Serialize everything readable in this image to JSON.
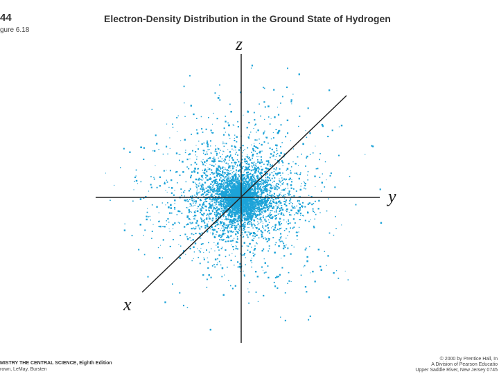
{
  "header": {
    "page": "44",
    "figure": "gure 6.18",
    "title": "Electron-Density Distribution in the Ground State of Hydrogen"
  },
  "axes": {
    "z": "z",
    "y": "y",
    "x": "x"
  },
  "footer": {
    "left": [
      "MISTRY THE CENTRAL SCIENCE, Eighth Edition",
      "rown, LeMay, Bursten"
    ],
    "right": [
      "© 2000 by Prentice Hall, In",
      "A Division of Pearson Educatio",
      "Upper Saddle River, New Jersey 0745"
    ]
  }
}
